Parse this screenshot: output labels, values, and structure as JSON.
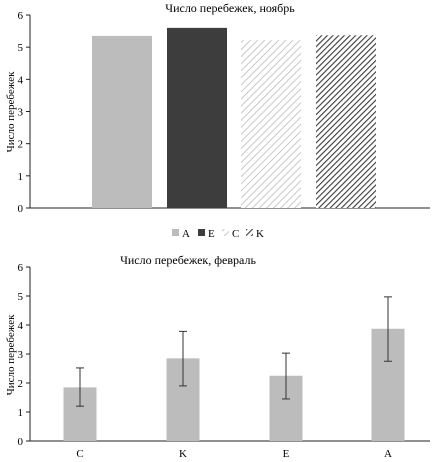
{
  "chart_data": [
    {
      "type": "bar",
      "title": "Число перебежек, ноябрь",
      "ylabel": "Число перебежек",
      "xlabel": "",
      "ylim": [
        0,
        6
      ],
      "yticks": [
        0,
        1,
        2,
        3,
        4,
        5,
        6
      ],
      "categories": [
        "A",
        "E",
        "C",
        "K"
      ],
      "values": [
        5.35,
        5.6,
        5.22,
        5.37
      ],
      "fills": [
        "solid-light-gray",
        "solid-dark-gray",
        "light-hatch",
        "dark-hatch"
      ],
      "colors": [
        "#bdbcbc",
        "#3d3d3d",
        "#d6d6d6",
        "#4a4a4a"
      ],
      "legend": {
        "position": "bottom",
        "entries": [
          "A",
          "E",
          "C",
          "K"
        ]
      },
      "grid": false
    },
    {
      "type": "bar",
      "title": "Число перебежек,  февраль",
      "ylabel": "Число перебежек",
      "xlabel": "",
      "ylim": [
        0,
        6
      ],
      "yticks": [
        0,
        1,
        2,
        3,
        4,
        5,
        6
      ],
      "categories": [
        "C",
        "K",
        "E",
        "A"
      ],
      "values": [
        1.85,
        2.85,
        2.25,
        3.87
      ],
      "error_low": [
        1.2,
        1.9,
        1.45,
        2.75
      ],
      "error_high": [
        2.52,
        3.78,
        3.03,
        4.97
      ],
      "colors": [
        "#bdbcbc"
      ],
      "grid": false
    }
  ]
}
